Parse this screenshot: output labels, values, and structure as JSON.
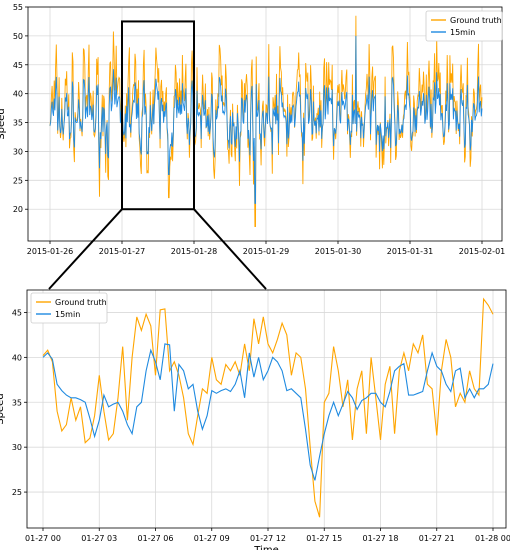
{
  "colors": {
    "ground_truth": "#FFA500",
    "pred": "#1F8AE0",
    "grid": "#d9d9d9"
  },
  "chart_data": [
    {
      "type": "line",
      "xlabel": "",
      "ylabel": "Speed",
      "ylim": [
        14.5,
        55
      ],
      "yticks": [
        20,
        25,
        30,
        35,
        40,
        45,
        50,
        55
      ],
      "xticks": [
        "2015-01-26",
        "2015-01-27",
        "2015-01-28",
        "2015-01-29",
        "2015-01-30",
        "2015-01-31",
        "2015-02-01"
      ],
      "xrange_days": [
        0,
        6
      ],
      "grid": true,
      "legend": "top-right",
      "zoom_box": {
        "x_days": [
          1.0,
          2.0
        ],
        "y": [
          20,
          52.5
        ]
      },
      "series": [
        {
          "name": "Ground truth",
          "seed": 7,
          "base": 37.0,
          "noise": 6.0,
          "spikes": [
            [
              1.65,
              22.0
            ],
            [
              2.85,
              17.0
            ],
            [
              4.25,
              53.5
            ],
            [
              1.1,
              48.0
            ]
          ]
        },
        {
          "name": "15min",
          "seed": 7,
          "base": 36.0,
          "noise": 3.6,
          "spikes": [
            [
              1.65,
              26.0
            ],
            [
              2.85,
              21.0
            ],
            [
              4.25,
              50.0
            ]
          ]
        }
      ]
    },
    {
      "type": "line",
      "xlabel": "Time",
      "ylabel": "Speed",
      "ylim": [
        21,
        47.5
      ],
      "yticks": [
        25,
        30,
        35,
        40,
        45
      ],
      "xticks": [
        "01-27 00",
        "01-27 03",
        "01-27 06",
        "01-27 09",
        "01-27 12",
        "01-27 15",
        "01-27 18",
        "01-27 21",
        "01-28 00"
      ],
      "xrange_hours": [
        0,
        24
      ],
      "grid": true,
      "legend": "top-left",
      "series": [
        {
          "name": "Ground truth",
          "x": [
            0,
            0.25,
            0.5,
            0.75,
            1,
            1.25,
            1.5,
            1.75,
            2,
            2.25,
            2.5,
            2.75,
            3,
            3.25,
            3.5,
            3.75,
            4,
            4.25,
            4.5,
            4.75,
            5,
            5.25,
            5.5,
            5.75,
            6,
            6.25,
            6.5,
            6.75,
            7,
            7.25,
            7.5,
            7.75,
            8,
            8.25,
            8.5,
            8.75,
            9,
            9.25,
            9.5,
            9.75,
            10,
            10.25,
            10.5,
            10.75,
            11,
            11.25,
            11.5,
            11.75,
            12,
            12.25,
            12.5,
            12.75,
            13,
            13.25,
            13.5,
            13.75,
            14,
            14.25,
            14.5,
            14.75,
            15,
            15.25,
            15.5,
            15.75,
            16,
            16.25,
            16.5,
            16.75,
            17,
            17.25,
            17.5,
            17.75,
            18,
            18.25,
            18.5,
            18.75,
            19,
            19.25,
            19.5,
            19.75,
            20,
            20.25,
            20.5,
            20.75,
            21,
            21.25,
            21.5,
            21.75,
            22,
            22.25,
            22.5,
            22.75,
            23,
            23.25,
            23.5,
            23.75,
            24
          ],
          "values": [
            40.2,
            40.8,
            39.5,
            34.0,
            31.8,
            32.5,
            35.5,
            33.0,
            34.5,
            30.5,
            31.0,
            33.5,
            38.0,
            34.0,
            30.8,
            31.5,
            35.5,
            41.2,
            33.0,
            40.0,
            44.5,
            43.0,
            44.8,
            43.5,
            38.0,
            45.3,
            45.4,
            38.5,
            39.5,
            38.0,
            35.5,
            31.5,
            30.3,
            33.5,
            36.5,
            36.0,
            40.0,
            37.5,
            37.0,
            39.2,
            38.5,
            39.5,
            38.0,
            41.5,
            38.5,
            44.3,
            41.5,
            44.5,
            41.5,
            40.5,
            42.0,
            43.8,
            42.5,
            38.0,
            40.5,
            40.0,
            36.5,
            30.0,
            24.0,
            22.2,
            35.0,
            36.0,
            41.2,
            38.5,
            34.5,
            37.5,
            30.8,
            36.5,
            38.5,
            31.5,
            40.0,
            35.5,
            30.8,
            37.0,
            39.0,
            31.5,
            38.5,
            40.5,
            38.5,
            41.5,
            40.5,
            42.5,
            37.0,
            36.5,
            31.3,
            38.5,
            42.0,
            40.0,
            34.5,
            36.0,
            35.0,
            38.5,
            36.5,
            35.8,
            46.5,
            45.8,
            44.8
          ]
        },
        {
          "name": "15min",
          "x": [
            0,
            0.25,
            0.5,
            0.75,
            1,
            1.25,
            1.5,
            1.75,
            2,
            2.25,
            2.5,
            2.75,
            3,
            3.25,
            3.5,
            3.75,
            4,
            4.25,
            4.5,
            4.75,
            5,
            5.25,
            5.5,
            5.75,
            6,
            6.25,
            6.5,
            6.75,
            7,
            7.25,
            7.5,
            7.75,
            8,
            8.25,
            8.5,
            8.75,
            9,
            9.25,
            9.5,
            9.75,
            10,
            10.25,
            10.5,
            10.75,
            11,
            11.25,
            11.5,
            11.75,
            12,
            12.25,
            12.5,
            12.75,
            13,
            13.25,
            13.5,
            13.75,
            14,
            14.25,
            14.5,
            14.75,
            15,
            15.25,
            15.5,
            15.75,
            16,
            16.25,
            16.5,
            16.75,
            17,
            17.25,
            17.5,
            17.75,
            18,
            18.25,
            18.5,
            18.75,
            19,
            19.25,
            19.5,
            19.75,
            20,
            20.25,
            20.5,
            20.75,
            21,
            21.25,
            21.5,
            21.75,
            22,
            22.25,
            22.5,
            22.75,
            23,
            23.25,
            23.5,
            23.75,
            24
          ],
          "values": [
            40.0,
            40.5,
            39.8,
            37.0,
            36.3,
            35.8,
            35.5,
            35.5,
            35.3,
            35.0,
            33.2,
            31.2,
            33.0,
            35.8,
            34.5,
            34.8,
            35.0,
            34.0,
            32.5,
            31.5,
            34.5,
            35.0,
            38.5,
            40.8,
            39.5,
            37.5,
            41.5,
            41.4,
            34.0,
            39.2,
            38.5,
            36.5,
            37.0,
            34.0,
            32.0,
            33.5,
            36.3,
            36.0,
            36.3,
            36.5,
            36.2,
            37.0,
            38.5,
            35.5,
            40.5,
            37.8,
            40.0,
            37.5,
            38.5,
            40.0,
            39.5,
            38.5,
            36.3,
            36.5,
            36.0,
            35.5,
            32.0,
            28.0,
            26.3,
            29.0,
            31.5,
            33.5,
            35.0,
            33.5,
            34.8,
            36.2,
            35.5,
            34.2,
            35.2,
            35.5,
            36.0,
            36.0,
            35.0,
            34.5,
            36.2,
            38.5,
            39.0,
            39.3,
            35.8,
            35.8,
            36.0,
            36.2,
            38.5,
            40.5,
            39.0,
            38.5,
            37.0,
            36.2,
            38.5,
            38.8,
            35.5,
            36.5,
            35.5,
            36.5,
            36.5,
            37.0,
            39.3
          ]
        }
      ]
    }
  ]
}
